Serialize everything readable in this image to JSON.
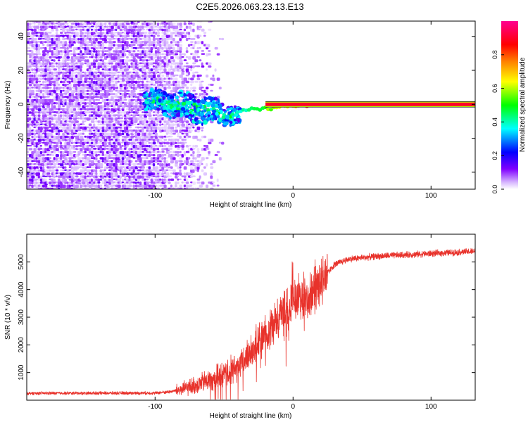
{
  "title": "C2E5.2026.063.23.13.E13",
  "chart_data": [
    {
      "type": "heatmap",
      "title": "",
      "xlabel": "Height of straight line (km)",
      "ylabel": "Frequency (Hz)",
      "xlim": [
        -193,
        132
      ],
      "ylim": [
        -50,
        49
      ],
      "xticks": [
        -100,
        0,
        100
      ],
      "xtick_labels": [
        "-100",
        "0",
        "100"
      ],
      "yticks": [
        -40,
        -20,
        0,
        20,
        40
      ],
      "ytick_labels": [
        "-40",
        "-20",
        "0",
        "20",
        "40"
      ],
      "colorbar": {
        "label": "Normalized spectral amplitude",
        "range": [
          0,
          1
        ],
        "ticks": [
          0.0,
          0.2,
          0.4,
          0.6,
          0.8
        ],
        "tick_labels": [
          "0.0",
          "0.2",
          "0.4",
          "0.6",
          "0.8"
        ],
        "colors": [
          "#ffffff",
          "#8000ff",
          "#0000ff",
          "#00ffff",
          "#00ff00",
          "#ffff00",
          "#ff8000",
          "#ff0000",
          "#ff0090"
        ]
      },
      "regions": [
        {
          "name": "broadband noise",
          "x": [
            -193,
            -90
          ],
          "freq": [
            -49,
            49
          ],
          "amplitude": 0.08
        },
        {
          "name": "noise fade",
          "x": [
            -90,
            -55
          ],
          "freq": [
            -49,
            49
          ],
          "amplitude": 0.04
        },
        {
          "name": "diffuse carrier",
          "x": [
            -105,
            -40
          ],
          "freq_center": [
            2,
            -8
          ],
          "amplitude": 0.3
        },
        {
          "name": "carrier line",
          "x": [
            -40,
            132
          ],
          "freq": [
            0,
            0
          ],
          "amplitude": 0.97
        }
      ]
    },
    {
      "type": "line",
      "title": "",
      "xlabel": "Height of straight line (km)",
      "ylabel": "SNR (10 * v/v)",
      "xlim": [
        -193,
        132
      ],
      "ylim": [
        0,
        6000
      ],
      "xticks": [
        -100,
        0,
        100
      ],
      "xtick_labels": [
        "-100",
        "0",
        "100"
      ],
      "yticks": [
        1000,
        2000,
        3000,
        4000,
        5000
      ],
      "ytick_labels": [
        "1000",
        "2000",
        "3000",
        "4000",
        "5000"
      ],
      "series": [
        {
          "name": "SNR",
          "color": "#e8322b",
          "x": [
            -193,
            -100,
            -90,
            -80,
            -70,
            -60,
            -50,
            -40,
            -30,
            -20,
            -10,
            0,
            10,
            20,
            30,
            40,
            50,
            60,
            80,
            100,
            120,
            132
          ],
          "y": [
            250,
            260,
            300,
            400,
            550,
            750,
            900,
            1200,
            1800,
            2400,
            3000,
            3600,
            3800,
            4300,
            4900,
            5100,
            5150,
            5200,
            5250,
            5300,
            5350,
            5380
          ]
        }
      ]
    }
  ]
}
